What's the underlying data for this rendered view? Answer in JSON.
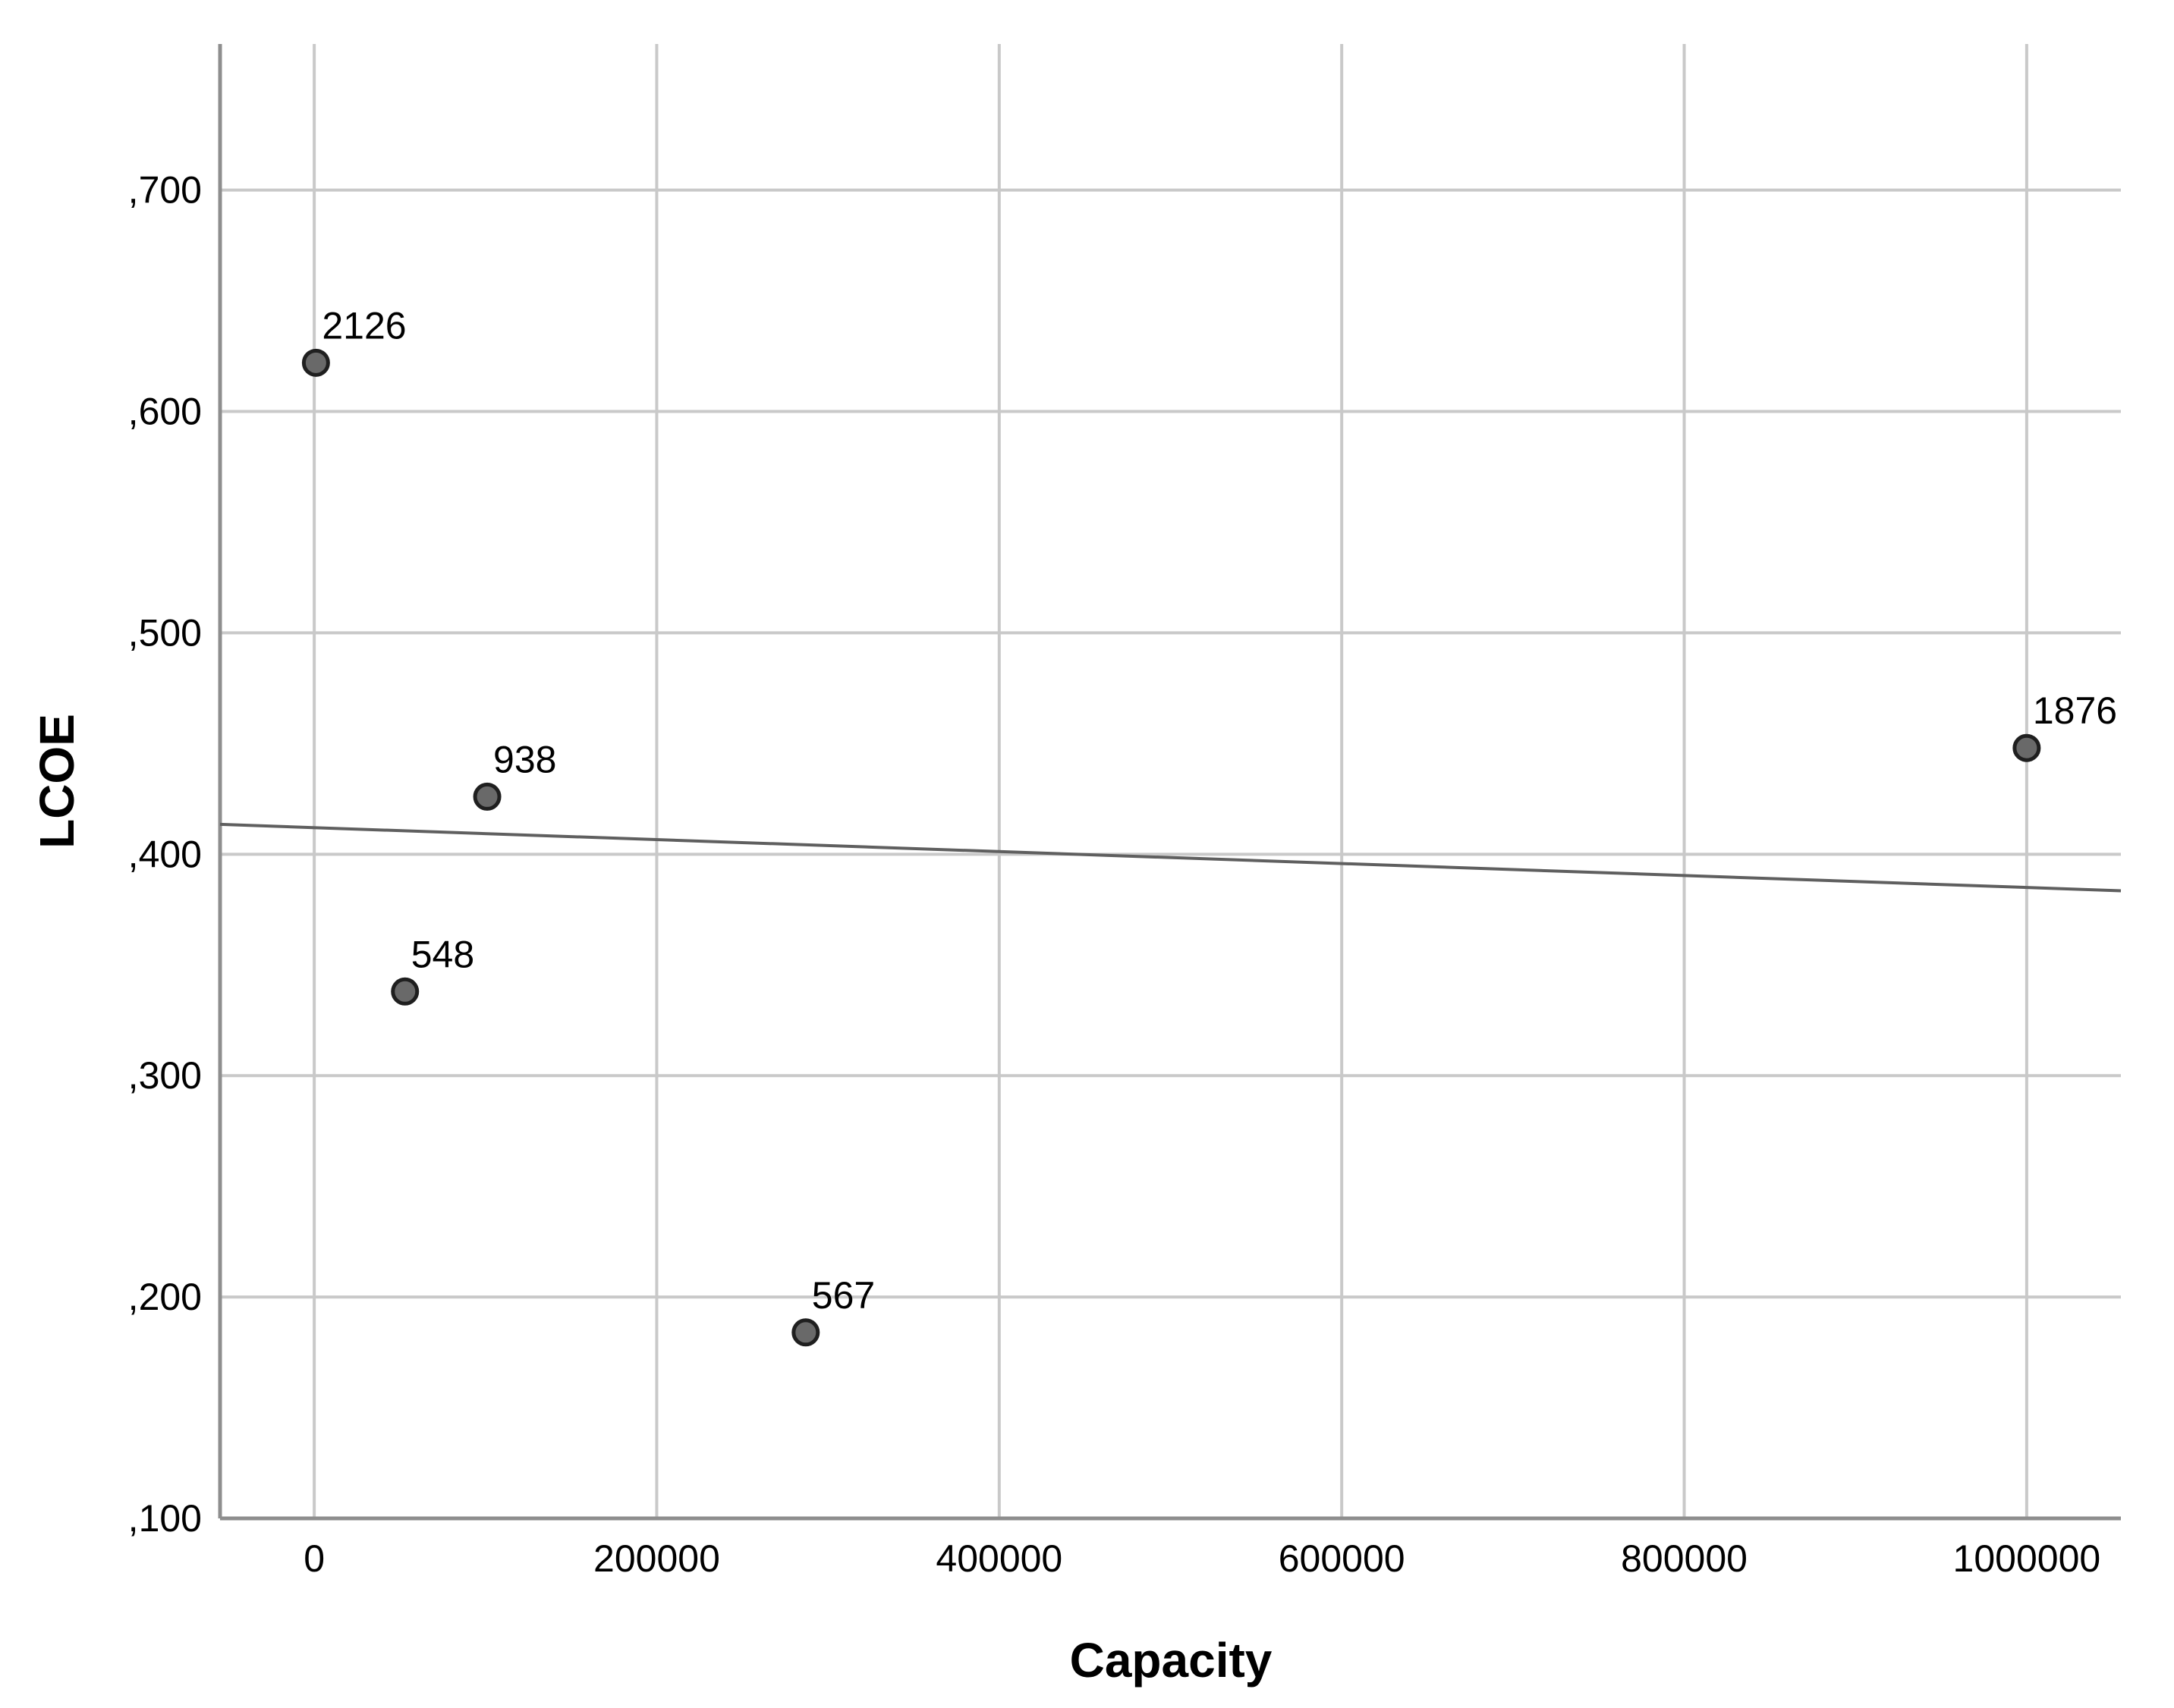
{
  "figure": {
    "background": "#ffffff"
  },
  "chart_data": {
    "type": "scatter",
    "title": "",
    "xlabel": "Capacity",
    "ylabel": "LCOE",
    "xlim": [
      -55000,
      1055000
    ],
    "ylim": [
      0.1,
      0.766
    ],
    "grid": true,
    "legend": "none",
    "x_ticks": [
      {
        "value": 0,
        "label": "0"
      },
      {
        "value": 200000,
        "label": "200000"
      },
      {
        "value": 400000,
        "label": "400000"
      },
      {
        "value": 600000,
        "label": "600000"
      },
      {
        "value": 800000,
        "label": "800000"
      },
      {
        "value": 1000000,
        "label": "1000000"
      }
    ],
    "y_ticks": [
      {
        "value": 0.1,
        "label": ",100"
      },
      {
        "value": 0.2,
        "label": ",200"
      },
      {
        "value": 0.3,
        "label": ",300"
      },
      {
        "value": 0.4,
        "label": ",400"
      },
      {
        "value": 0.5,
        "label": ",500"
      },
      {
        "value": 0.6,
        "label": ",600"
      },
      {
        "value": 0.7,
        "label": ",700"
      }
    ],
    "points": [
      {
        "label": "2126",
        "x": 1000,
        "y": 0.622
      },
      {
        "label": "938",
        "x": 101000,
        "y": 0.426
      },
      {
        "label": "548",
        "x": 53000,
        "y": 0.338
      },
      {
        "label": "567",
        "x": 287000,
        "y": 0.184
      },
      {
        "label": "1876",
        "x": 1000000,
        "y": 0.448
      }
    ],
    "fit_line": {
      "x1": -55000,
      "y1": 0.4135,
      "x2": 1055000,
      "y2": 0.3835
    },
    "colors": {
      "grid": "#c9c9c9",
      "axis": "#8e8e8e",
      "fit_line": "#5f5f5f",
      "marker_fill": "#696969",
      "marker_stroke": "#1f1f1f",
      "text": "#000000"
    }
  }
}
